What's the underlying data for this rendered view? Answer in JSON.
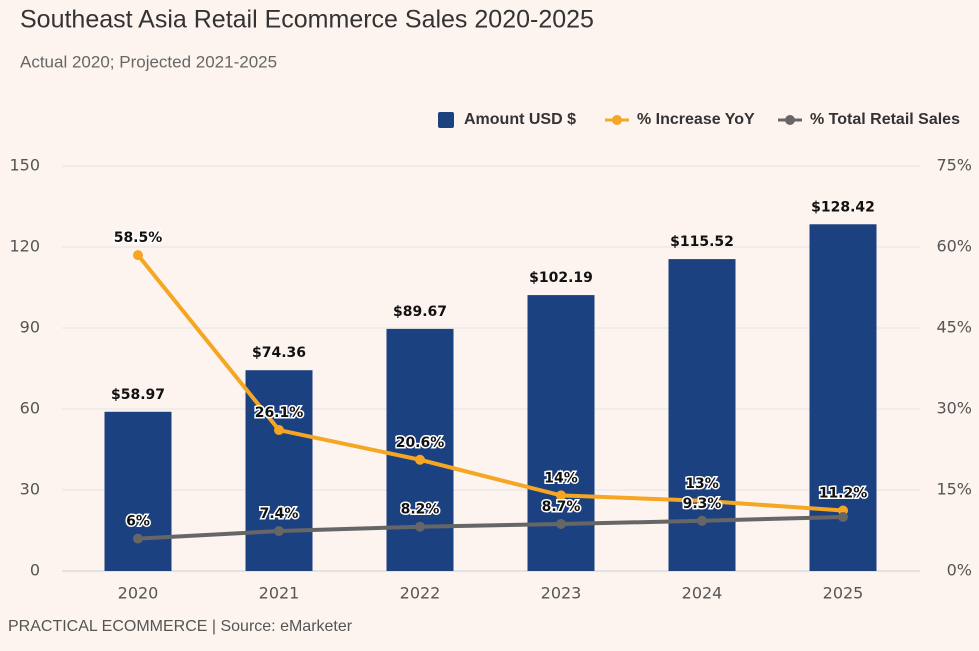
{
  "chart_data": {
    "type": "bar-line",
    "title": "Southeast Asia Retail Ecommerce Sales 2020-2025",
    "subtitle": "Actual 2020; Projected 2021-2025",
    "source": "PRACTICAL ECOMMERCE | Source: eMarketer",
    "categories": [
      "2020",
      "2021",
      "2022",
      "2023",
      "2024",
      "2025"
    ],
    "series": [
      {
        "name": "Amount USD $",
        "type": "bar",
        "color": "#1c4180",
        "values": [
          58.97,
          74.36,
          89.67,
          102.19,
          115.52,
          128.42
        ],
        "value_labels": [
          "$58.97",
          "$74.36",
          "$89.67",
          "$102.19",
          "$115.52",
          "$128.42"
        ]
      },
      {
        "name": "% Increase YoY",
        "type": "line",
        "axis": "y2",
        "color": "#f5a623",
        "values": [
          58.5,
          26.1,
          20.6,
          14,
          13,
          11.2
        ],
        "value_labels": [
          "58.5%",
          "26.1%",
          "20.6%",
          "14%",
          "13%",
          "11.2%"
        ]
      },
      {
        "name": "% Total Retail Sales",
        "type": "line",
        "axis": "y2",
        "color": "#666666",
        "values": [
          6,
          7.4,
          8.2,
          8.7,
          9.3,
          10
        ],
        "value_labels": [
          "6%",
          "7.4%",
          "8.2%",
          "8.7%",
          "9.3%",
          null
        ]
      }
    ],
    "ylim": [
      0,
      150
    ],
    "yticks": [
      0,
      30,
      60,
      90,
      120,
      150
    ],
    "y2lim": [
      0,
      75
    ],
    "y2ticks": [
      {
        "value": 0,
        "label": "0%"
      },
      {
        "value": 15,
        "label": "15%"
      },
      {
        "value": 30,
        "label": "30%"
      },
      {
        "value": 45,
        "label": "45%"
      },
      {
        "value": 60,
        "label": "60%"
      },
      {
        "value": 75,
        "label": "75%"
      }
    ],
    "grid": true,
    "legend": "top-right"
  }
}
